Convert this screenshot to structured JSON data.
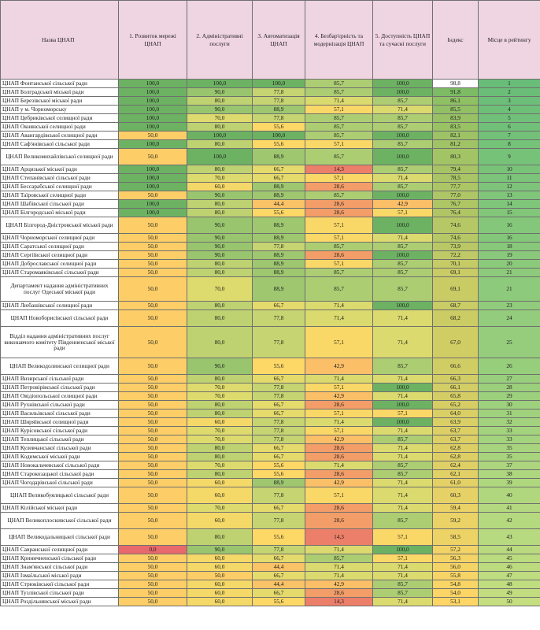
{
  "headers": {
    "name": "Назва ЦНАП",
    "c1": "1. Розвиток мережі ЦНАП",
    "c2": "2. Адміністративні послуги",
    "c3": "3. Автоматизація ЦНАП",
    "c4": "4. Безбар'єрність та модернізація ЦНАП",
    "c5": "5. Доступність ЦНАП та сучасні послуги",
    "index": "Індекс",
    "rank": "Місце в рейтингу"
  },
  "rows": [
    {
      "name": "ЦНАП Фонтанської сільської ради",
      "lines": 1,
      "c1": "100,0",
      "c2": "100,0",
      "c3": "100,0",
      "c4": "85,7",
      "c5": "100,0",
      "index": "98,8",
      "rank": "1"
    },
    {
      "name": "ЦНАП Болградської міської ради",
      "lines": 1,
      "c1": "100,0",
      "c2": "90,0",
      "c3": "77,8",
      "c4": "85,7",
      "c5": "100,0",
      "index": "91,8",
      "rank": "2"
    },
    {
      "name": "ЦНАП Березівської міської ради",
      "lines": 1,
      "c1": "100,0",
      "c2": "80,0",
      "c3": "77,8",
      "c4": "71,4",
      "c5": "85,7",
      "index": "86,1",
      "rank": "3"
    },
    {
      "name": "ЦНАП у м. Чорноморську",
      "lines": 1,
      "c1": "100,0",
      "c2": "90,0",
      "c3": "88,9",
      "c4": "57,1",
      "c5": "71,4",
      "index": "85,5",
      "rank": "4"
    },
    {
      "name": "ЦНАП Цебриківської селищної ради",
      "lines": 1,
      "c1": "100,0",
      "c2": "70,0",
      "c3": "77,8",
      "c4": "85,7",
      "c5": "85,7",
      "index": "83,9",
      "rank": "5"
    },
    {
      "name": "ЦНАП Окнянської селищної ради",
      "lines": 1,
      "c1": "100,0",
      "c2": "80,0",
      "c3": "55,6",
      "c4": "85,7",
      "c5": "85,7",
      "index": "83,5",
      "rank": "6"
    },
    {
      "name": "ЦНАП Авангардівської селищної ради",
      "lines": 1,
      "c1": "50,0",
      "c2": "100,0",
      "c3": "100,0",
      "c4": "85,7",
      "c5": "100,0",
      "index": "82,1",
      "rank": "7"
    },
    {
      "name": "ЦНАП Саф'янівської сільської ради",
      "lines": 1,
      "c1": "100,0",
      "c2": "80,0",
      "c3": "55,6",
      "c4": "57,1",
      "c5": "85,7",
      "index": "81,2",
      "rank": "8"
    },
    {
      "name": "ЦНАП Великомихайлівської селищної ради",
      "lines": 2,
      "c1": "50,0",
      "c2": "100,0",
      "c3": "88,9",
      "c4": "85,7",
      "c5": "100,0",
      "index": "80,3",
      "rank": "9"
    },
    {
      "name": "ЦНАП Арцизької міської ради",
      "lines": 1,
      "c1": "100,0",
      "c2": "80,0",
      "c3": "66,7",
      "c4": "14,3",
      "c5": "85,7",
      "index": "79,4",
      "rank": "10"
    },
    {
      "name": "ЦНАП Степанівської сільської ради",
      "lines": 1,
      "c1": "100,0",
      "c2": "70,0",
      "c3": "66,7",
      "c4": "57,1",
      "c5": "71,4",
      "index": "78,5",
      "rank": "11"
    },
    {
      "name": "ЦНАП Бессарабської селищної ради",
      "lines": 1,
      "c1": "100,0",
      "c2": "60,0",
      "c3": "88,9",
      "c4": "28,6",
      "c5": "85,7",
      "index": "77,7",
      "rank": "12"
    },
    {
      "name": "ЦНАП Таїровської селищної ради",
      "lines": 1,
      "c1": "50,0",
      "c2": "90,0",
      "c3": "88,9",
      "c4": "85,7",
      "c5": "100,0",
      "index": "77,0",
      "rank": "13"
    },
    {
      "name": "ЦНАП Шабівської сільської ради",
      "lines": 1,
      "c1": "100,0",
      "c2": "80,0",
      "c3": "44,4",
      "c4": "28,6",
      "c5": "42,9",
      "index": "76,7",
      "rank": "14"
    },
    {
      "name": "ЦНАП Білгородської міської ради",
      "lines": 1,
      "c1": "100,0",
      "c2": "80,0",
      "c3": "55,6",
      "c4": "28,6",
      "c5": "57,1",
      "index": "76,4",
      "rank": "15"
    },
    {
      "name": "ЦНАП Білгород-Дністровської міської ради",
      "lines": 2,
      "c1": "50,0",
      "c2": "90,0",
      "c3": "88,9",
      "c4": "57,1",
      "c5": "100,0",
      "index": "74,6",
      "rank": "16"
    },
    {
      "name": "ЦНАП Чорноморської селищної ради",
      "lines": 1,
      "c1": "50,0",
      "c2": "90,0",
      "c3": "88,9",
      "c4": "57,1",
      "c5": "71,4",
      "index": "74,6",
      "rank": "16"
    },
    {
      "name": "ЦНАП Саратської селищної ради",
      "lines": 1,
      "c1": "50,0",
      "c2": "90,0",
      "c3": "77,8",
      "c4": "85,7",
      "c5": "85,7",
      "index": "73,9",
      "rank": "18"
    },
    {
      "name": "ЦНАП Сергіївської селищної ради",
      "lines": 1,
      "c1": "50,0",
      "c2": "90,0",
      "c3": "88,9",
      "c4": "28,6",
      "c5": "100,0",
      "index": "72,2",
      "rank": "19"
    },
    {
      "name": "ЦНАП Доброславської селищної ради",
      "lines": 1,
      "c1": "50,0",
      "c2": "80,0",
      "c3": "88,9",
      "c4": "57,1",
      "c5": "85,7",
      "index": "70,1",
      "rank": "20"
    },
    {
      "name": "ЦНАП Старомаяківської сільської ради",
      "lines": 1,
      "c1": "50,0",
      "c2": "80,0",
      "c3": "88,9",
      "c4": "85,7",
      "c5": "85,7",
      "index": "69,1",
      "rank": "21"
    },
    {
      "name": "Департамент надання адміністративних послуг Одеської міської ради",
      "lines": 3,
      "c1": "50,0",
      "c2": "70,0",
      "c3": "88,9",
      "c4": "85,7",
      "c5": "85,7",
      "index": "69,1",
      "rank": "21"
    },
    {
      "name": "ЦНАП Любашівської селищної ради",
      "lines": 1,
      "c1": "50,0",
      "c2": "80,0",
      "c3": "66,7",
      "c4": "71,4",
      "c5": "100,0",
      "index": "68,7",
      "rank": "23"
    },
    {
      "name": "ЦНАП Новоборисівської сільської ради",
      "lines": 2,
      "c1": "50,0",
      "c2": "80,0",
      "c3": "77,8",
      "c4": "71,4",
      "c5": "71,4",
      "index": "68,2",
      "rank": "24"
    },
    {
      "name": "Відділ надання адміністративних послуг виконавчого комітету Південненської міської ради",
      "lines": 4,
      "c1": "50,0",
      "c2": "80,0",
      "c3": "77,8",
      "c4": "57,1",
      "c5": "71,4",
      "index": "67,0",
      "rank": "25"
    },
    {
      "name": "ЦНАП Великодолинської селищної ради",
      "lines": 2,
      "c1": "50,0",
      "c2": "90,0",
      "c3": "55,6",
      "c4": "42,9",
      "c5": "85,7",
      "index": "66,6",
      "rank": "26"
    },
    {
      "name": "ЦНАП Визирської сільської ради",
      "lines": 1,
      "c1": "50,0",
      "c2": "80,0",
      "c3": "66,7",
      "c4": "71,4",
      "c5": "71,4",
      "index": "66,3",
      "rank": "27"
    },
    {
      "name": "ЦНАП Петровірівської сільської ради",
      "lines": 1,
      "c1": "50,0",
      "c2": "70,0",
      "c3": "77,8",
      "c4": "57,1",
      "c5": "100,0",
      "index": "66,1",
      "rank": "28"
    },
    {
      "name": "ЦНАП Овідіопольської селищної ради",
      "lines": 1,
      "c1": "50,0",
      "c2": "70,0",
      "c3": "77,8",
      "c4": "42,9",
      "c5": "71,4",
      "index": "65,8",
      "rank": "29"
    },
    {
      "name": "ЦНАП Рухнівської сільської ради",
      "lines": 1,
      "c1": "50,0",
      "c2": "80,0",
      "c3": "66,7",
      "c4": "28,6",
      "c5": "100,0",
      "index": "65,2",
      "rank": "30"
    },
    {
      "name": "ЦНАП Васильівської сільської ради",
      "lines": 1,
      "c1": "50,0",
      "c2": "80,0",
      "c3": "66,7",
      "c4": "57,1",
      "c5": "57,1",
      "index": "64,0",
      "rank": "31"
    },
    {
      "name": "ЦНАП Ширяївської селищної ради",
      "lines": 1,
      "c1": "50,0",
      "c2": "60,0",
      "c3": "77,8",
      "c4": "71,4",
      "c5": "100,0",
      "index": "63,9",
      "rank": "32"
    },
    {
      "name": "ЦНАП Курісовської сільської ради",
      "lines": 1,
      "c1": "50,0",
      "c2": "70,0",
      "c3": "77,8",
      "c4": "57,1",
      "c5": "71,4",
      "index": "63,7",
      "rank": "33"
    },
    {
      "name": "ЦНАП Теплицької сільської ради",
      "lines": 1,
      "c1": "50,0",
      "c2": "70,0",
      "c3": "77,8",
      "c4": "42,9",
      "c5": "85,7",
      "index": "63,7",
      "rank": "33"
    },
    {
      "name": "ЦНАП Кулевчанської сільської ради",
      "lines": 1,
      "c1": "50,0",
      "c2": "80,0",
      "c3": "66,7",
      "c4": "28,6",
      "c5": "71,4",
      "index": "62,8",
      "rank": "35"
    },
    {
      "name": "ЦНАП Кодимської міської ради",
      "lines": 1,
      "c1": "50,0",
      "c2": "80,0",
      "c3": "66,7",
      "c4": "28,6",
      "c5": "71,4",
      "index": "62,8",
      "rank": "35"
    },
    {
      "name": "ЦНАП Новокальчевської сільської ради",
      "lines": 1,
      "c1": "50,0",
      "c2": "70,0",
      "c3": "55,6",
      "c4": "71,4",
      "c5": "85,7",
      "index": "62,4",
      "rank": "37"
    },
    {
      "name": "ЦНАП Старокозацької сільської ради",
      "lines": 1,
      "c1": "50,0",
      "c2": "80,0",
      "c3": "55,6",
      "c4": "28,6",
      "c5": "85,7",
      "index": "62,1",
      "rank": "38"
    },
    {
      "name": "ЦНАП Чогодарівської сільської ради",
      "lines": 1,
      "c1": "50,0",
      "c2": "60,0",
      "c3": "88,9",
      "c4": "42,9",
      "c5": "71,4",
      "index": "61,0",
      "rank": "39"
    },
    {
      "name": "ЦНАП Великобуялицької сільської ради",
      "lines": 2,
      "c1": "50,0",
      "c2": "60,0",
      "c3": "77,8",
      "c4": "57,1",
      "c5": "71,4",
      "index": "60,3",
      "rank": "40"
    },
    {
      "name": "ЦНАП Кілійської міської ради",
      "lines": 1,
      "c1": "50,0",
      "c2": "70,0",
      "c3": "66,7",
      "c4": "28,6",
      "c5": "71,4",
      "index": "59,4",
      "rank": "41"
    },
    {
      "name": "ЦНАП Великоплоскивської сільської ради",
      "lines": 2,
      "c1": "50,0",
      "c2": "60,0",
      "c3": "77,8",
      "c4": "28,6",
      "c5": "85,7",
      "index": "59,2",
      "rank": "42"
    },
    {
      "name": "ЦНАП Великодальницької сільської ради",
      "lines": 2,
      "c1": "50,0",
      "c2": "80,0",
      "c3": "55,6",
      "c4": "14,3",
      "c5": "57,1",
      "index": "58,5",
      "rank": "43"
    },
    {
      "name": "ЦНАП Савранської селищної ради",
      "lines": 1,
      "c1": "0,0",
      "c2": "90,0",
      "c3": "77,8",
      "c4": "71,4",
      "c5": "100,0",
      "index": "57,2",
      "rank": "44"
    },
    {
      "name": "ЦНАП Криничненської сільської ради",
      "lines": 1,
      "c1": "50,0",
      "c2": "60,0",
      "c3": "66,7",
      "c4": "85,7",
      "c5": "57,1",
      "index": "56,3",
      "rank": "45"
    },
    {
      "name": "ЦНАП Знам'янської сільської ради",
      "lines": 1,
      "c1": "50,0",
      "c2": "60,0",
      "c3": "44,4",
      "c4": "71,4",
      "c5": "71,4",
      "index": "56,0",
      "rank": "46"
    },
    {
      "name": "ЦНАП Ізмаїльської міської ради",
      "lines": 1,
      "c1": "50,0",
      "c2": "50,0",
      "c3": "66,7",
      "c4": "71,4",
      "c5": "71,4",
      "index": "55,8",
      "rank": "47"
    },
    {
      "name": "ЦНАП Стрюківської сільської ради",
      "lines": 1,
      "c1": "50,0",
      "c2": "60,0",
      "c3": "44,4",
      "c4": "42,9",
      "c5": "85,7",
      "index": "54,8",
      "rank": "48"
    },
    {
      "name": "ЦНАП Тузлівської сільської ради",
      "lines": 1,
      "c1": "50,0",
      "c2": "60,0",
      "c3": "66,7",
      "c4": "28,6",
      "c5": "85,7",
      "index": "54,0",
      "rank": "49"
    },
    {
      "name": "ЦНАП Роздільнянської міської ради",
      "lines": 1,
      "c1": "50,0",
      "c2": "60,0",
      "c3": "55,6",
      "c4": "14,3",
      "c5": "71,4",
      "index": "53,1",
      "rank": "50"
    }
  ]
}
